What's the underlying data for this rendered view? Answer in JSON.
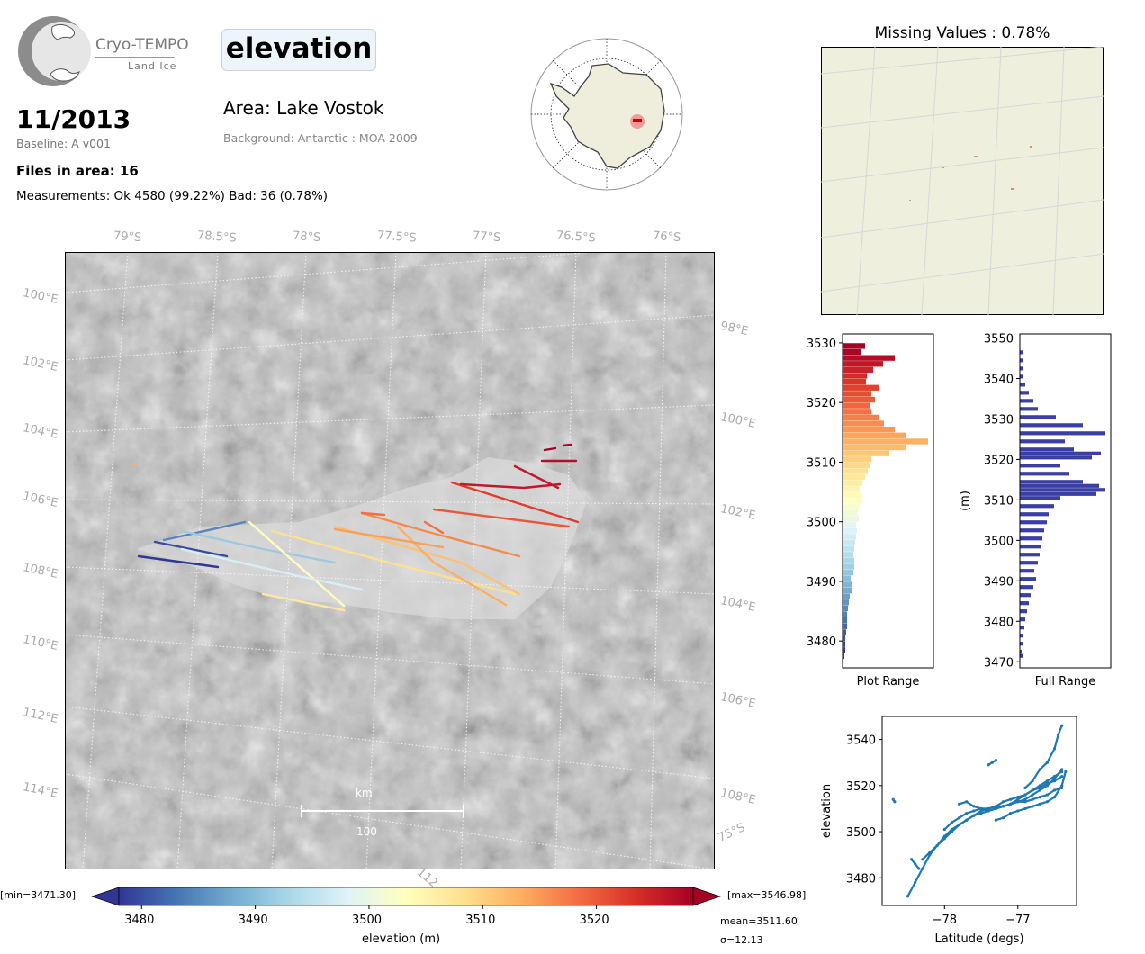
{
  "header": {
    "logo": {
      "brand": "Cryo-TEMPO",
      "sub": "Land Ice"
    },
    "variable": "elevation",
    "period": "11/2013",
    "baseline": "Baseline: A v001",
    "files_in_area": "Files in area: 16",
    "measurements": "Measurements: Ok 4580 (99.22%) Bad: 36 (0.78%)",
    "area": "Area: Lake Vostok",
    "background": "Background: Antarctic : MOA 2009"
  },
  "map": {
    "lat_labels": [
      "79°S",
      "78.5°S",
      "78°S",
      "77.5°S",
      "77°S",
      "76.5°S",
      "76°S"
    ],
    "lon_labels_left": [
      "100°E",
      "102°E",
      "104°E",
      "106°E",
      "108°E",
      "110°E",
      "112°E",
      "114°E"
    ],
    "lon_labels_right": [
      "98°E",
      "100°E",
      "102°E",
      "104°E",
      "106°E",
      "108°E"
    ],
    "corner_label": "75°S",
    "bottom_cut_label": "112",
    "scalebar": {
      "unit": "km",
      "value": "100"
    },
    "track_colors_note": "colour = elevation"
  },
  "colorbar": {
    "min_label": "[min=3471.30]",
    "max_label": "[max=3546.98]",
    "ticks": [
      "3480",
      "3490",
      "3500",
      "3510",
      "3520"
    ],
    "tick_values": [
      3480,
      3490,
      3500,
      3510,
      3520
    ],
    "range": [
      3478,
      3528.5
    ],
    "label": "elevation (m)",
    "mean": "mean=3511.60",
    "sigma": "σ=12.13",
    "colors": [
      "#313695",
      "#4575b4",
      "#74add1",
      "#abd9e9",
      "#e0f3f8",
      "#ffffbf",
      "#fee090",
      "#fdae61",
      "#f46d43",
      "#d73027",
      "#a50026"
    ]
  },
  "missing": {
    "title": "Missing Values : 0.78%"
  },
  "chart_data": [
    {
      "type": "bar",
      "id": "plot-range-hist",
      "orientation": "horizontal",
      "xlabel": "Plot Range",
      "ylabel": "",
      "ylim": [
        3475.5,
        3531.5
      ],
      "yticks": [
        3480,
        3490,
        3500,
        3510,
        3520,
        3530
      ],
      "bins": [
        3477,
        3478,
        3479,
        3480,
        3481,
        3482,
        3483,
        3484,
        3485,
        3486,
        3487,
        3488,
        3489,
        3490,
        3491,
        3492,
        3493,
        3494,
        3495,
        3496,
        3497,
        3498,
        3499,
        3500,
        3501,
        3502,
        3503,
        3504,
        3505,
        3506,
        3507,
        3508,
        3509,
        3510,
        3511,
        3512,
        3513,
        3514,
        3515,
        3516,
        3517,
        3518,
        3519,
        3520,
        3521,
        3522,
        3523,
        3524,
        3525,
        3526,
        3527,
        3528,
        3529
      ],
      "values": [
        2,
        3,
        3,
        3,
        4,
        5,
        5,
        5,
        6,
        7,
        8,
        10,
        10,
        9,
        12,
        13,
        13,
        12,
        13,
        14,
        15,
        16,
        15,
        18,
        17,
        18,
        20,
        20,
        19,
        22,
        25,
        28,
        30,
        32,
        52,
        70,
        95,
        70,
        58,
        46,
        40,
        32,
        30,
        36,
        32,
        40,
        26,
        27,
        34,
        45,
        58,
        20,
        25
      ]
    },
    {
      "type": "bar",
      "id": "full-range-hist",
      "orientation": "horizontal",
      "xlabel": "Full Range",
      "ylabel": "(m)",
      "ylim": [
        3468.5,
        3551
      ],
      "yticks": [
        3470,
        3480,
        3490,
        3500,
        3510,
        3520,
        3530,
        3540,
        3550
      ],
      "bins": [
        3471,
        3472,
        3474,
        3476,
        3478,
        3480,
        3482,
        3484,
        3486,
        3488,
        3490,
        3492,
        3494,
        3496,
        3498,
        3500,
        3502,
        3504,
        3506,
        3508,
        3510,
        3511,
        3512,
        3513,
        3514,
        3516,
        3518,
        3520,
        3521,
        3522,
        3524,
        3526,
        3528,
        3530,
        3532,
        3534,
        3536,
        3538,
        3540,
        3542,
        3544,
        3546
      ],
      "values": [
        4,
        2,
        3,
        4,
        5,
        6,
        8,
        10,
        12,
        15,
        18,
        16,
        20,
        22,
        24,
        25,
        27,
        30,
        32,
        38,
        45,
        85,
        95,
        88,
        70,
        55,
        45,
        80,
        90,
        60,
        50,
        95,
        70,
        40,
        20,
        15,
        10,
        6,
        4,
        4,
        3,
        3
      ]
    },
    {
      "type": "scatter",
      "id": "lat-elev",
      "title": "",
      "xlabel": "Latitude (degs)",
      "ylabel": "elevation",
      "xlim": [
        -78.85,
        -76.2
      ],
      "ylim": [
        3468,
        3550
      ],
      "xticks": [
        -78,
        -77
      ],
      "xtick_labels": [
        "−78",
        "−77"
      ],
      "yticks": [
        3480,
        3500,
        3520,
        3540
      ],
      "color": "#1f77b4",
      "series": [
        {
          "x": [
            -78.5,
            -78.4,
            -78.3,
            -78.2,
            -78.1,
            -78.0,
            -77.9,
            -77.8,
            -77.7,
            -77.6,
            -77.5,
            -77.4,
            -77.3,
            -77.2,
            -77.1,
            -77.0,
            -76.9,
            -76.8,
            -76.7,
            -76.6,
            -76.5,
            -76.4
          ],
          "y": [
            3472,
            3478,
            3484,
            3490,
            3494,
            3498,
            3501,
            3503,
            3505,
            3507,
            3508,
            3509,
            3510,
            3511,
            3512,
            3513,
            3514,
            3516,
            3518,
            3520,
            3523,
            3527
          ]
        },
        {
          "x": [
            -78.3,
            -78.2,
            -78.1,
            -78.0,
            -77.9,
            -77.8,
            -77.7,
            -77.6,
            -77.5,
            -77.4,
            -77.3,
            -77.2,
            -77.1,
            -77.0,
            -76.9,
            -76.8,
            -76.7,
            -76.6,
            -76.5,
            -76.4
          ],
          "y": [
            3488,
            3491,
            3494,
            3497,
            3500,
            3503,
            3505,
            3507,
            3509,
            3510,
            3511,
            3513,
            3514,
            3515,
            3516,
            3518,
            3520,
            3522,
            3524,
            3526
          ]
        },
        {
          "x": [
            -78.0,
            -77.9,
            -77.8,
            -77.7,
            -77.6,
            -77.5,
            -77.4,
            -77.3,
            -77.2,
            -77.1,
            -77.0,
            -76.9,
            -76.8,
            -76.7,
            -76.6,
            -76.5,
            -76.4
          ],
          "y": [
            3501,
            3504,
            3506,
            3508,
            3509,
            3510,
            3510,
            3511,
            3511,
            3512,
            3514,
            3516,
            3518,
            3519,
            3521,
            3522,
            3524
          ]
        },
        {
          "x": [
            -77.8,
            -77.7,
            -77.6,
            -77.5,
            -77.4,
            -77.3,
            -77.2,
            -77.1,
            -77.0,
            -76.9,
            -76.8,
            -76.7,
            -76.6,
            -76.5,
            -76.4
          ],
          "y": [
            3512,
            3513,
            3511,
            3510,
            3509,
            3510,
            3511,
            3512,
            3513,
            3513,
            3514,
            3515,
            3516,
            3518,
            3519
          ]
        },
        {
          "x": [
            -77.3,
            -77.2,
            -77.1,
            -77.0,
            -76.9,
            -76.8,
            -76.7,
            -76.6,
            -76.5,
            -76.4,
            -76.35
          ],
          "y": [
            3505,
            3506,
            3508,
            3509,
            3510,
            3511,
            3512,
            3513,
            3515,
            3520,
            3526
          ]
        },
        {
          "x": [
            -76.9,
            -76.8,
            -76.7,
            -76.6,
            -76.5,
            -76.45,
            -76.4
          ],
          "y": [
            3519,
            3522,
            3527,
            3530,
            3536,
            3542,
            3546
          ]
        },
        {
          "x": [
            -77.4,
            -77.35,
            -77.3
          ],
          "y": [
            3529,
            3530,
            3531
          ]
        },
        {
          "x": [
            -78.7,
            -78.68
          ],
          "y": [
            3514,
            3513
          ]
        },
        {
          "x": [
            -78.45,
            -78.4,
            -78.35
          ],
          "y": [
            3488,
            3486,
            3484
          ]
        }
      ]
    }
  ]
}
